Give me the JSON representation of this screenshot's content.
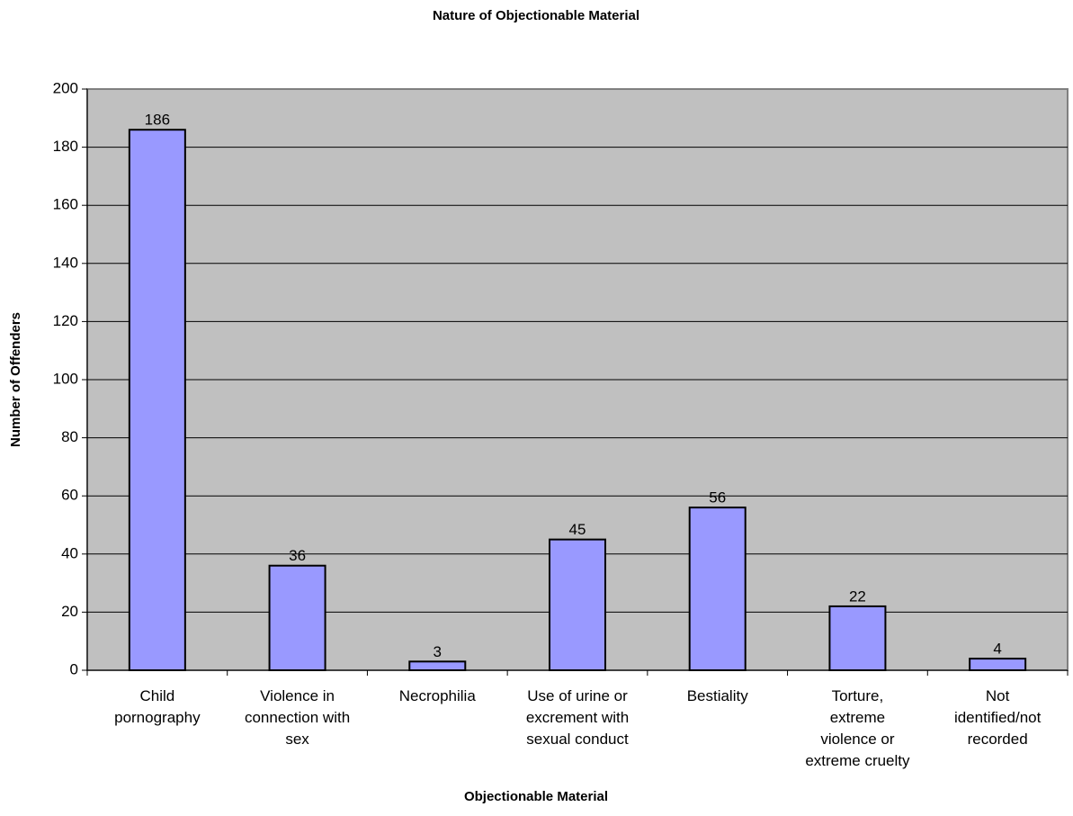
{
  "chart_data": {
    "type": "bar",
    "title": "Nature of Objectionable Material",
    "x_label": "Objectionable Material",
    "y_label": "Number of Offenders",
    "categories": [
      "Child pornography",
      "Violence in connection with sex",
      "Necrophilia",
      "Use of urine or excrement with sexual conduct",
      "Bestiality",
      "Torture, extreme violence or extreme cruelty",
      "Not identified/not recorded"
    ],
    "values": [
      186,
      36,
      3,
      45,
      56,
      22,
      4
    ],
    "color": "#9999ff",
    "background": "#c0c0c0",
    "ylim": [
      0,
      200
    ],
    "yticks": [
      0,
      20,
      40,
      60,
      80,
      100,
      120,
      140,
      160,
      180,
      200
    ],
    "grid": true
  }
}
